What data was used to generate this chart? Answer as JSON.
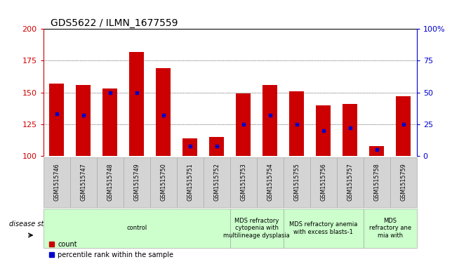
{
  "title": "GDS5622 / ILMN_1677559",
  "samples": [
    "GSM1515746",
    "GSM1515747",
    "GSM1515748",
    "GSM1515749",
    "GSM1515750",
    "GSM1515751",
    "GSM1515752",
    "GSM1515753",
    "GSM1515754",
    "GSM1515755",
    "GSM1515756",
    "GSM1515757",
    "GSM1515758",
    "GSM1515759"
  ],
  "counts": [
    157,
    156,
    153,
    182,
    169,
    114,
    115,
    149,
    156,
    151,
    140,
    141,
    108,
    147
  ],
  "percentile_ranks": [
    33,
    32,
    50,
    50,
    32,
    8,
    8,
    25,
    32,
    25,
    20,
    22,
    5,
    25
  ],
  "bar_color": "#cc0000",
  "pct_color": "#0000cc",
  "ymin": 100,
  "ymax": 200,
  "y_ticks": [
    100,
    125,
    150,
    175,
    200
  ],
  "right_y_ticks": [
    0,
    25,
    50,
    75,
    100
  ],
  "groups": [
    {
      "label": "control",
      "start": 0,
      "end": 7
    },
    {
      "label": "MDS refractory\ncytopenia with\nmultilineage dysplasia",
      "start": 7,
      "end": 9
    },
    {
      "label": "MDS refractory anemia\nwith excess blasts-1",
      "start": 9,
      "end": 12
    },
    {
      "label": "MDS\nrefractory ane\nmia with",
      "start": 12,
      "end": 14
    }
  ],
  "group_color": "#ccffcc",
  "sample_box_color": "#d4d4d4",
  "disease_label": "disease state",
  "legend_count": "count",
  "legend_pct": "percentile rank within the sample",
  "bar_width": 0.55
}
